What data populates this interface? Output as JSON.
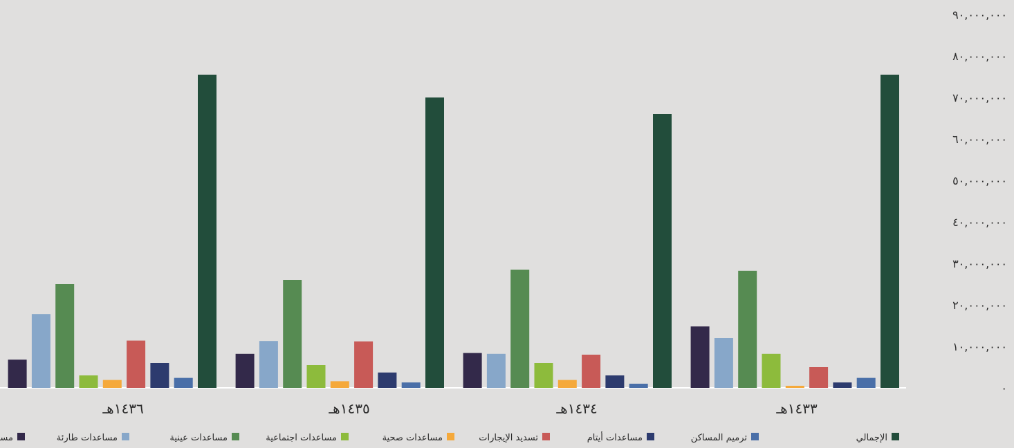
{
  "chart_data": {
    "type": "bar",
    "ylim": [
      0,
      90000000
    ],
    "yticks": [
      {
        "value": 0,
        "label": "٠"
      },
      {
        "value": 10000000,
        "label": "١٠,٠٠٠,٠٠٠"
      },
      {
        "value": 20000000,
        "label": "٢٠,٠٠٠,٠٠٠"
      },
      {
        "value": 30000000,
        "label": "٣٠,٠٠٠,٠٠٠"
      },
      {
        "value": 40000000,
        "label": "٤٠,٠٠٠,٠٠٠"
      },
      {
        "value": 50000000,
        "label": "٥٠,٠٠٠,٠٠٠"
      },
      {
        "value": 60000000,
        "label": "٦٠,٠٠٠,٠٠٠"
      },
      {
        "value": 70000000,
        "label": "٧٠,٠٠٠,٠٠٠"
      },
      {
        "value": 80000000,
        "label": "٨٠,٠٠٠,٠٠٠"
      },
      {
        "value": 90000000,
        "label": "٩٠,٠٠٠,٠٠٠"
      }
    ],
    "categories": [
      "١٤٣٣هـ",
      "١٤٣٤هـ",
      "١٤٣٥هـ",
      "١٤٣٦هـ"
    ],
    "legend_position": "bottom",
    "series": [
      {
        "name": "الإجمالي",
        "color": "#224d3b",
        "values": [
          75500000,
          66000000,
          70000000,
          75500000
        ]
      },
      {
        "name": "ترميم المساكن",
        "color": "#4a6fa8",
        "values": [
          2400000,
          1000000,
          1300000,
          2400000
        ]
      },
      {
        "name": "مساعدات أيتام",
        "color": "#2d3b6e",
        "values": [
          1300000,
          3000000,
          3700000,
          6000000
        ]
      },
      {
        "name": "تسديد الإيجارات",
        "color": "#c85a57",
        "values": [
          5000000,
          8000000,
          11200000,
          11400000
        ]
      },
      {
        "name": "مساعدات صحية",
        "color": "#f5a93b",
        "values": [
          500000,
          1900000,
          1600000,
          1900000
        ]
      },
      {
        "name": "مساعدات اجتماعية",
        "color": "#8dbb3c",
        "values": [
          8200000,
          6000000,
          5500000,
          3000000
        ]
      },
      {
        "name": "مساعدات عينية",
        "color": "#568b52",
        "values": [
          28200000,
          28500000,
          26000000,
          25000000
        ]
      },
      {
        "name": "مساعدات طارئة",
        "color": "#87a7c9",
        "values": [
          12000000,
          8200000,
          11300000,
          17800000
        ]
      },
      {
        "name": "مساعدات دائمة",
        "color": "#33294a",
        "values": [
          14800000,
          8400000,
          8200000,
          6800000
        ]
      }
    ]
  }
}
